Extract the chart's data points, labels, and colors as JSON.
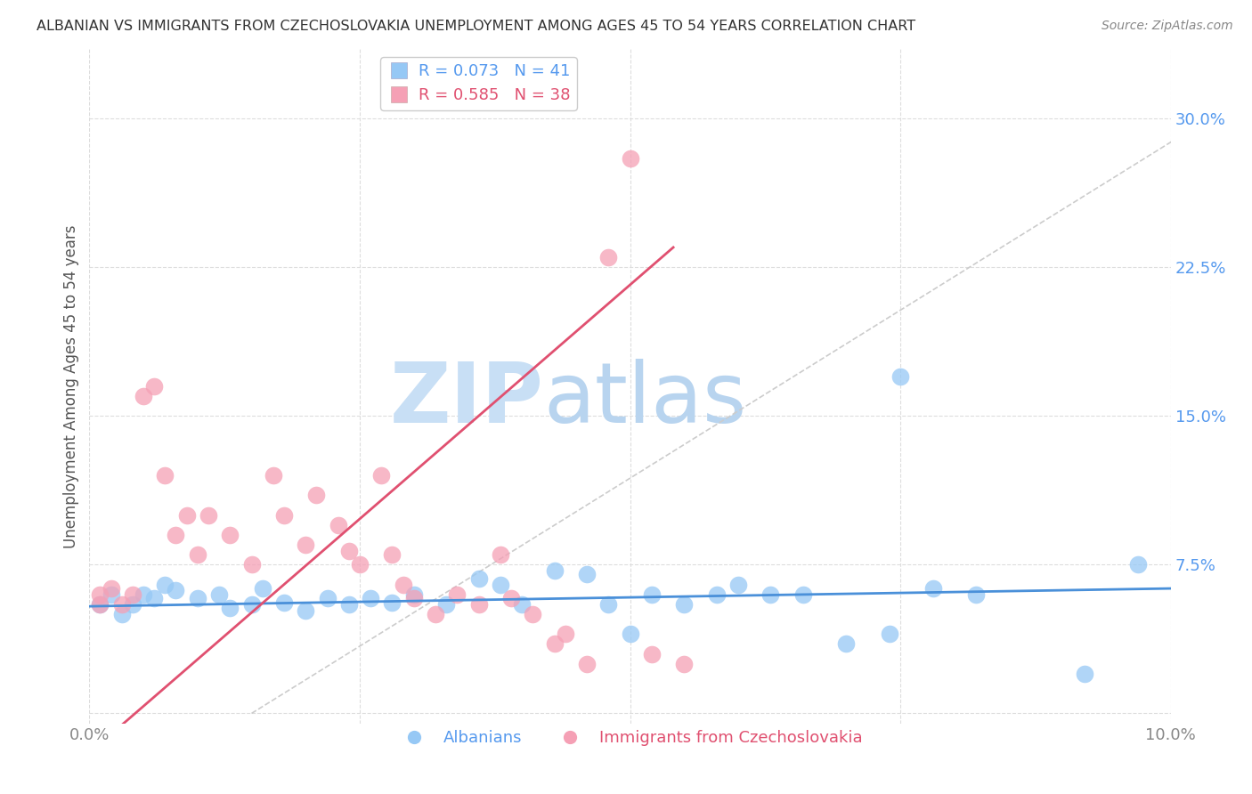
{
  "title": "ALBANIAN VS IMMIGRANTS FROM CZECHOSLOVAKIA UNEMPLOYMENT AMONG AGES 45 TO 54 YEARS CORRELATION CHART",
  "source": "Source: ZipAtlas.com",
  "ylabel": "Unemployment Among Ages 45 to 54 years",
  "xlim": [
    0.0,
    0.1
  ],
  "ylim": [
    -0.005,
    0.335
  ],
  "yticks": [
    0.0,
    0.075,
    0.15,
    0.225,
    0.3
  ],
  "ytick_labels": [
    "",
    "7.5%",
    "15.0%",
    "22.5%",
    "30.0%"
  ],
  "xticks": [
    0.0,
    0.025,
    0.05,
    0.075,
    0.1
  ],
  "xtick_labels": [
    "0.0%",
    "",
    "",
    "",
    "10.0%"
  ],
  "legend_label1": "Albanians",
  "legend_label2": "Immigrants from Czechoslovakia",
  "color_blue": "#96C8F5",
  "color_pink": "#F5A0B5",
  "color_line_blue": "#4a90d9",
  "color_line_pink": "#e05070",
  "color_ref_line": "#cccccc",
  "watermark_zip": "ZIP",
  "watermark_atlas": "atlas",
  "watermark_color": "#c8dff5",
  "albanians_x": [
    0.001,
    0.002,
    0.003,
    0.004,
    0.005,
    0.006,
    0.007,
    0.008,
    0.01,
    0.012,
    0.013,
    0.015,
    0.016,
    0.018,
    0.02,
    0.022,
    0.024,
    0.026,
    0.028,
    0.03,
    0.033,
    0.036,
    0.038,
    0.04,
    0.043,
    0.046,
    0.048,
    0.05,
    0.052,
    0.055,
    0.058,
    0.06,
    0.063,
    0.066,
    0.07,
    0.074,
    0.075,
    0.078,
    0.082,
    0.092,
    0.097
  ],
  "albanians_y": [
    0.055,
    0.06,
    0.05,
    0.055,
    0.06,
    0.058,
    0.065,
    0.062,
    0.058,
    0.06,
    0.053,
    0.055,
    0.063,
    0.056,
    0.052,
    0.058,
    0.055,
    0.058,
    0.056,
    0.06,
    0.055,
    0.068,
    0.065,
    0.055,
    0.072,
    0.07,
    0.055,
    0.04,
    0.06,
    0.055,
    0.06,
    0.065,
    0.06,
    0.06,
    0.035,
    0.04,
    0.17,
    0.063,
    0.06,
    0.02,
    0.075
  ],
  "czech_x": [
    0.001,
    0.001,
    0.002,
    0.003,
    0.004,
    0.005,
    0.006,
    0.007,
    0.008,
    0.009,
    0.01,
    0.011,
    0.013,
    0.015,
    0.017,
    0.018,
    0.02,
    0.021,
    0.023,
    0.024,
    0.025,
    0.027,
    0.028,
    0.029,
    0.03,
    0.032,
    0.034,
    0.036,
    0.038,
    0.039,
    0.041,
    0.043,
    0.044,
    0.046,
    0.048,
    0.05,
    0.052,
    0.055
  ],
  "czech_y": [
    0.055,
    0.06,
    0.063,
    0.055,
    0.06,
    0.16,
    0.165,
    0.12,
    0.09,
    0.1,
    0.08,
    0.1,
    0.09,
    0.075,
    0.12,
    0.1,
    0.085,
    0.11,
    0.095,
    0.082,
    0.075,
    0.12,
    0.08,
    0.065,
    0.058,
    0.05,
    0.06,
    0.055,
    0.08,
    0.058,
    0.05,
    0.035,
    0.04,
    0.025,
    0.23,
    0.28,
    0.03,
    0.025
  ]
}
